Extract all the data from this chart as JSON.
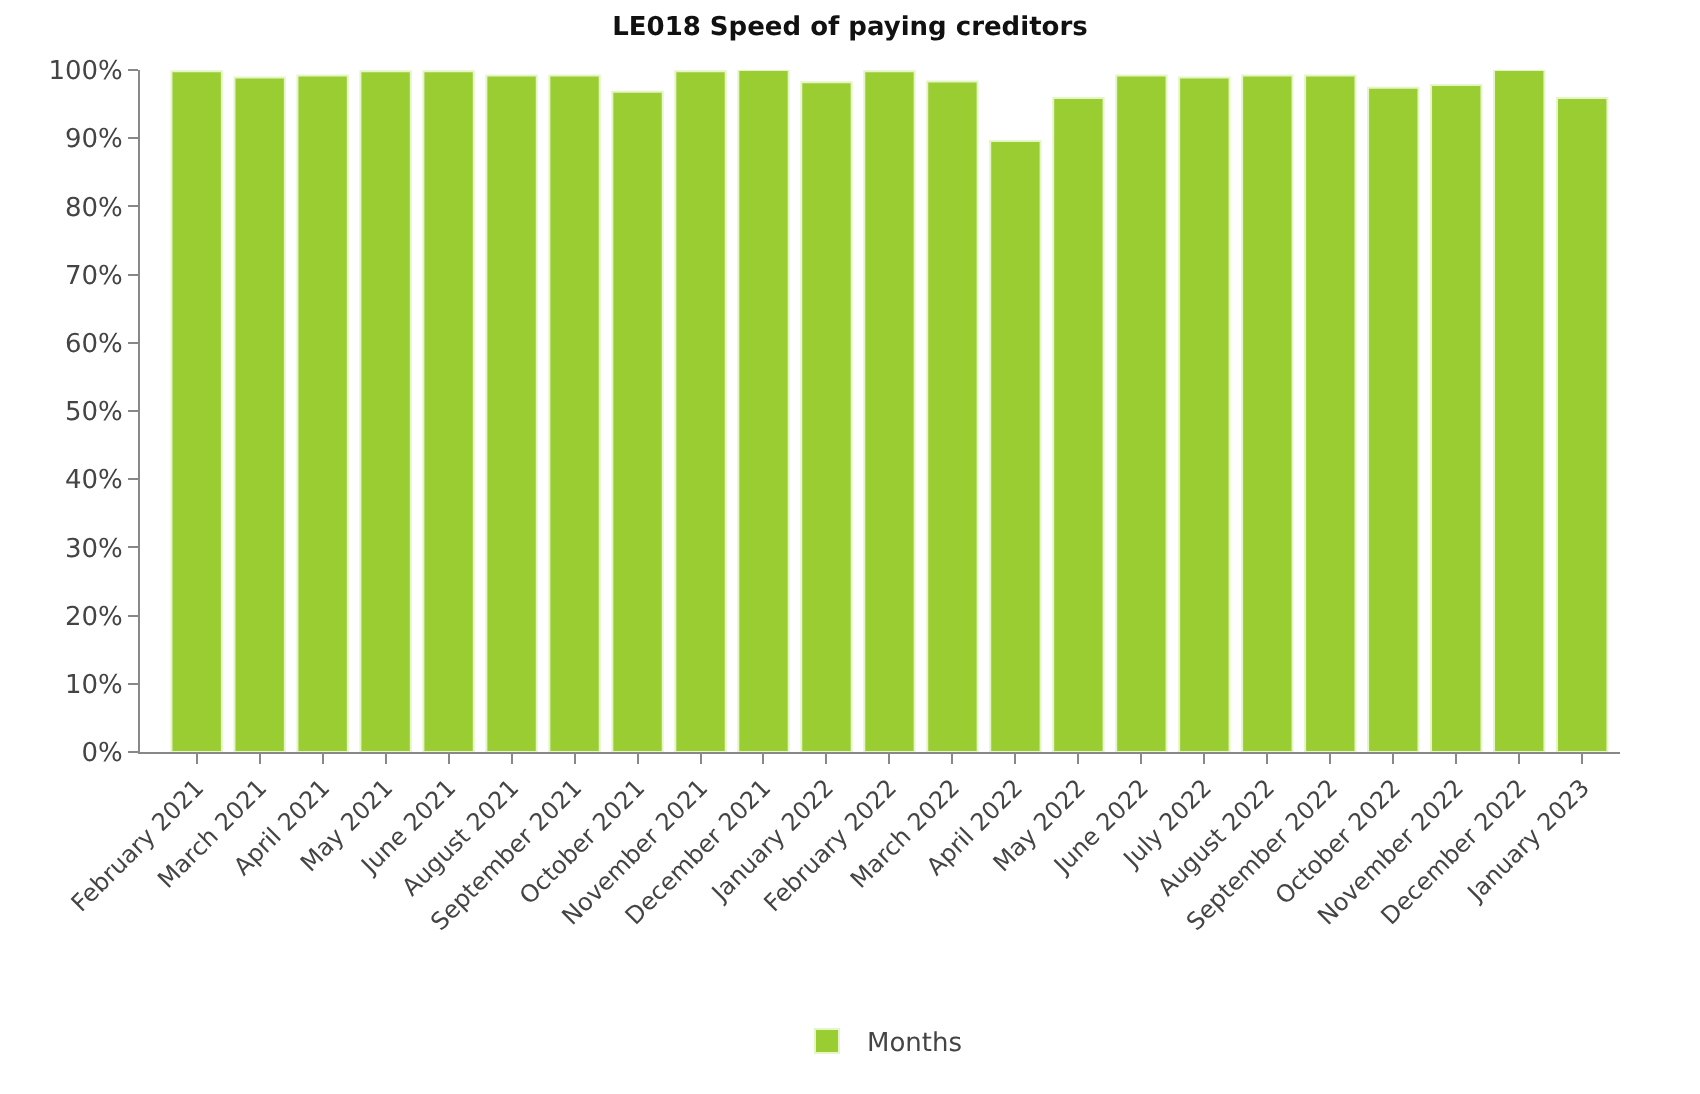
{
  "chart_data": {
    "type": "bar",
    "title": "LE018 Speed of paying creditors",
    "categories": [
      "February 2021",
      "March 2021",
      "April 2021",
      "May 2021",
      "June 2021",
      "August 2021",
      "September 2021",
      "October 2021",
      "November 2021",
      "December 2021",
      "January 2022",
      "February 2022",
      "March 2022",
      "April 2022",
      "May 2022",
      "June 2022",
      "July 2022",
      "August 2022",
      "September 2022",
      "October 2022",
      "November 2022",
      "December 2022",
      "January 2023"
    ],
    "series": [
      {
        "name": "Months",
        "color": "#9acd32",
        "values": [
          99.8,
          98.9,
          99.2,
          99.8,
          99.8,
          99.2,
          99.2,
          96.8,
          99.8,
          100,
          98.2,
          99.8,
          98.3,
          89.6,
          95.9,
          99.2,
          98.9,
          99.2,
          99.2,
          97.4,
          97.8,
          100,
          95.9
        ]
      }
    ],
    "ylim": [
      0,
      100
    ],
    "yticks": [
      {
        "value": 0,
        "label": "0%"
      },
      {
        "value": 10,
        "label": "10%"
      },
      {
        "value": 20,
        "label": "20%"
      },
      {
        "value": 30,
        "label": "30%"
      },
      {
        "value": 40,
        "label": "40%"
      },
      {
        "value": 50,
        "label": "50%"
      },
      {
        "value": 60,
        "label": "60%"
      },
      {
        "value": 70,
        "label": "70%"
      },
      {
        "value": 80,
        "label": "80%"
      },
      {
        "value": 90,
        "label": "90%"
      },
      {
        "value": 100,
        "label": "100%"
      }
    ],
    "grid": false,
    "legend": "bottom"
  }
}
